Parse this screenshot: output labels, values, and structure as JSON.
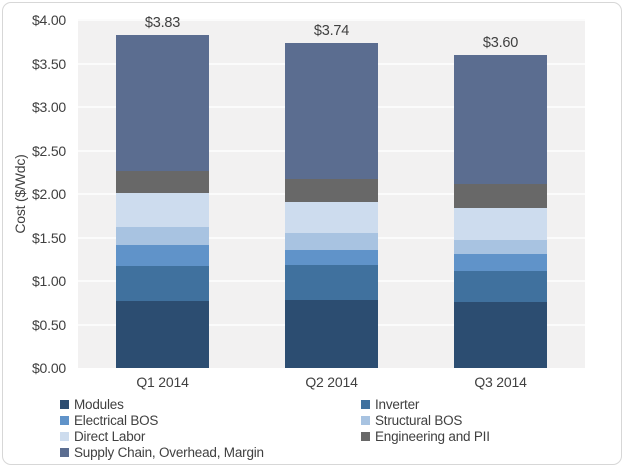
{
  "chart_data": {
    "type": "bar",
    "stacked": true,
    "title": "",
    "ylabel": "Cost ($/Wdc)",
    "xlabel": "",
    "categories": [
      "Q1 2014",
      "Q2 2014",
      "Q3 2014"
    ],
    "series": [
      {
        "name": "Modules",
        "color": "#2c4d71",
        "values": [
          0.77,
          0.78,
          0.76
        ]
      },
      {
        "name": "Inverter",
        "color": "#40719e",
        "values": [
          0.4,
          0.4,
          0.35
        ]
      },
      {
        "name": "Electrical BOS",
        "color": "#6093c9",
        "values": [
          0.24,
          0.18,
          0.2
        ]
      },
      {
        "name": "Structural BOS",
        "color": "#a8c3e1",
        "values": [
          0.21,
          0.19,
          0.16
        ]
      },
      {
        "name": "Direct Labor",
        "color": "#cddcee",
        "values": [
          0.39,
          0.36,
          0.37
        ]
      },
      {
        "name": "Engineering and PII",
        "color": "#686868",
        "values": [
          0.25,
          0.26,
          0.27
        ]
      },
      {
        "name": "Supply Chain, Overhead, Margin",
        "color": "#5b6d90",
        "values": [
          1.57,
          1.57,
          1.49
        ]
      }
    ],
    "totals": [
      "$3.83",
      "$3.74",
      "$3.60"
    ],
    "y_ticks": [
      "$0.00",
      "$0.50",
      "$1.00",
      "$1.50",
      "$2.00",
      "$2.50",
      "$3.00",
      "$3.50",
      "$4.00"
    ],
    "ylim": [
      0,
      4.0
    ],
    "grid": true,
    "legend_position": "bottom",
    "legend_columns": [
      [
        "Modules",
        "Electrical BOS",
        "Direct Labor",
        "Supply Chain, Overhead, Margin"
      ],
      [
        "Inverter",
        "Structural BOS",
        "Engineering and PII"
      ]
    ]
  },
  "style_colors": {
    "plot_background": "#f2f1f1",
    "grid_line": "#fbfbfb",
    "text": "#404040",
    "frame_border": "#d7d7d7"
  }
}
